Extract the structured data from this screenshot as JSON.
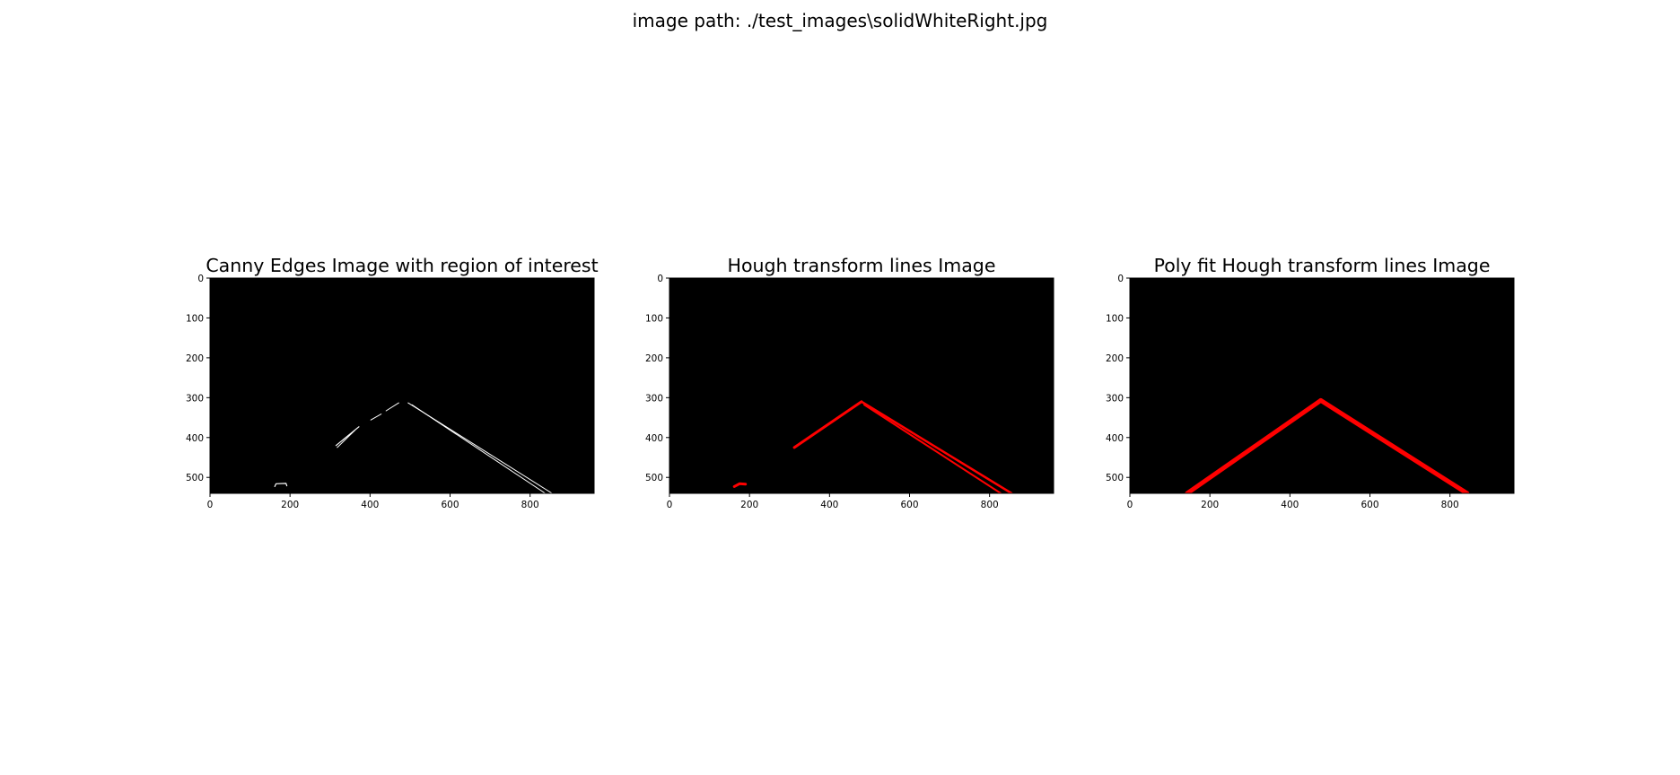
{
  "figure": {
    "suptitle": "image path: ./test_images\\solidWhiteRight.jpg"
  },
  "chart_data": [
    {
      "type": "image",
      "title": "Canny Edges Image with region of interest",
      "background": "#000000",
      "xlim": [
        0,
        960
      ],
      "ylim": [
        540,
        0
      ],
      "xticks": [
        0,
        200,
        400,
        600,
        800
      ],
      "yticks": [
        0,
        100,
        200,
        300,
        400,
        500
      ],
      "segments": [
        {
          "color": "#ffffff",
          "width": 1,
          "points": [
            [
              495,
              313
            ],
            [
              855,
              540
            ]
          ]
        },
        {
          "color": "#ffffff",
          "width": 1,
          "points": [
            [
              505,
              318
            ],
            [
              838,
              540
            ]
          ]
        },
        {
          "color": "#ffffff",
          "width": 1,
          "points": [
            [
              472,
              313
            ],
            [
              440,
              333
            ]
          ]
        },
        {
          "color": "#ffffff",
          "width": 1,
          "points": [
            [
              428,
              341
            ],
            [
              402,
              356
            ]
          ]
        },
        {
          "color": "#ffffff",
          "width": 1.2,
          "points": [
            [
              372,
              373
            ],
            [
              315,
              420
            ]
          ]
        },
        {
          "color": "#ffffff",
          "width": 1,
          "points": [
            [
              362,
              382
            ],
            [
              318,
              425
            ]
          ]
        },
        {
          "color": "#ffffff",
          "width": 1.2,
          "points": [
            [
              162,
              523
            ],
            [
              165,
              516
            ],
            [
              190,
              515
            ],
            [
              192,
              521
            ]
          ]
        }
      ]
    },
    {
      "type": "image",
      "title": "Hough transform lines Image",
      "background": "#000000",
      "xlim": [
        0,
        960
      ],
      "ylim": [
        540,
        0
      ],
      "xticks": [
        0,
        200,
        400,
        600,
        800
      ],
      "yticks": [
        0,
        100,
        200,
        300,
        400,
        500
      ],
      "segments": [
        {
          "color": "#ff0000",
          "width": 2.5,
          "points": [
            [
              480,
              310
            ],
            [
              855,
              540
            ]
          ]
        },
        {
          "color": "#ff0000",
          "width": 2,
          "points": [
            [
              487,
              318
            ],
            [
              828,
              540
            ]
          ]
        },
        {
          "color": "#ff0000",
          "width": 3,
          "points": [
            [
              480,
              310
            ],
            [
              312,
              425
            ]
          ]
        },
        {
          "color": "#ff0000",
          "width": 3,
          "points": [
            [
              162,
              523
            ],
            [
              175,
              516
            ],
            [
              190,
              517
            ]
          ]
        }
      ]
    },
    {
      "type": "image",
      "title": "Poly fit Hough transform lines Image",
      "background": "#000000",
      "xlim": [
        0,
        960
      ],
      "ylim": [
        540,
        0
      ],
      "xticks": [
        0,
        200,
        400,
        600,
        800
      ],
      "yticks": [
        0,
        100,
        200,
        300,
        400,
        500
      ],
      "segments": [
        {
          "color": "#ff0000",
          "width": 5,
          "points": [
            [
              143,
              540
            ],
            [
              477,
              307
            ]
          ]
        },
        {
          "color": "#ff0000",
          "width": 5,
          "points": [
            [
              477,
              307
            ],
            [
              843,
              540
            ]
          ]
        }
      ]
    }
  ]
}
